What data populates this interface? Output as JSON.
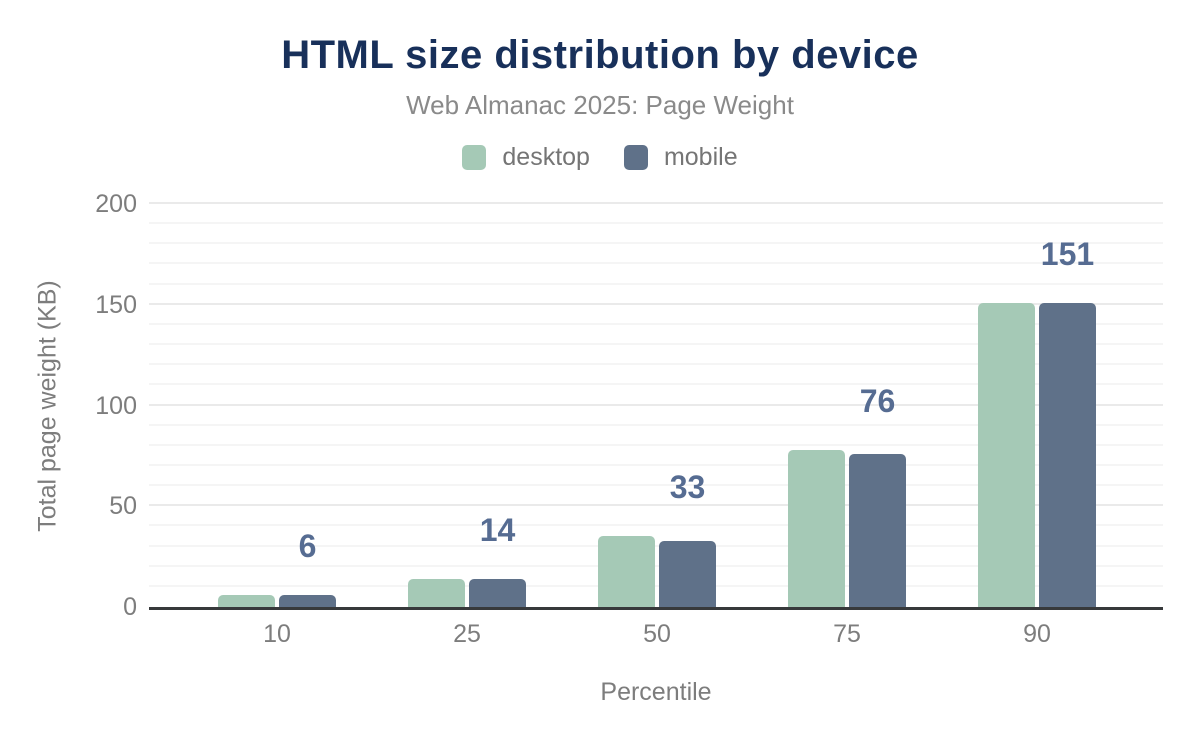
{
  "chart": {
    "title": "HTML size distribution by device",
    "subtitle": "Web Almanac 2025: Page Weight",
    "xlabel": "Percentile",
    "ylabel": "Total page weight (KB)"
  },
  "chart_data": {
    "type": "bar",
    "title": "HTML size distribution by device",
    "subtitle": "Web Almanac 2025: Page Weight",
    "categories": [
      "10",
      "25",
      "50",
      "75",
      "90"
    ],
    "series": [
      {
        "name": "desktop",
        "color": "#a5c9b6",
        "values": [
          6,
          14,
          35,
          78,
          151
        ]
      },
      {
        "name": "mobile",
        "color": "#5f7189",
        "values": [
          6,
          14,
          33,
          76,
          151
        ]
      }
    ],
    "bar_labels": {
      "series": "mobile",
      "values": [
        "6",
        "14",
        "33",
        "76",
        "151"
      ]
    },
    "xlabel": "Percentile",
    "ylabel": "Total page weight (KB)",
    "ylim": [
      0,
      200
    ],
    "yticks": [
      0,
      50,
      100,
      150,
      200
    ],
    "minor_grid_step": 10,
    "grid": true,
    "legend_position": "top"
  },
  "colors": {
    "title": "#18305a",
    "subtitle": "#8a8a8a",
    "tick": "#7d7d7d",
    "legend_text": "#757575",
    "data_label": "#566c92",
    "axis_line": "#37393b",
    "grid_minor": "#f5f5f5",
    "grid_major": "#eaeaea",
    "background": "#ffffff"
  }
}
